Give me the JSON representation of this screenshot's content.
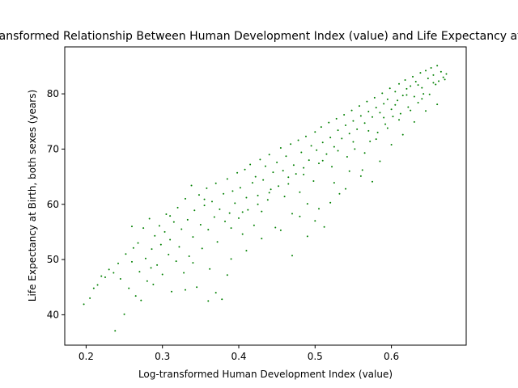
{
  "chart_data": {
    "type": "scatter",
    "title": "Log-transformed Relationship Between Human Development Index (value) and Life Expectancy at Birth",
    "xlabel": "Log-transformed Human Development Index (value)",
    "ylabel": "Life Expectancy at Birth, both sexes (years)",
    "xlim": [
      0.172,
      0.698
    ],
    "ylim": [
      34.5,
      88.5
    ],
    "xticks": [
      0.2,
      0.3,
      0.4,
      0.5,
      0.6
    ],
    "xtick_labels": [
      "0.2",
      "0.3",
      "0.4",
      "0.5",
      "0.6"
    ],
    "yticks": [
      40,
      50,
      60,
      70,
      80
    ],
    "ytick_labels": [
      "40",
      "50",
      "60",
      "70",
      "80"
    ],
    "grid": false,
    "legend": "none",
    "marker_color": "#008000",
    "points": [
      [
        0.197,
        41.9
      ],
      [
        0.205,
        43.0
      ],
      [
        0.21,
        44.8
      ],
      [
        0.215,
        45.4
      ],
      [
        0.22,
        47.0
      ],
      [
        0.225,
        46.8
      ],
      [
        0.23,
        48.2
      ],
      [
        0.236,
        47.6
      ],
      [
        0.238,
        37.1
      ],
      [
        0.242,
        49.3
      ],
      [
        0.245,
        46.5
      ],
      [
        0.25,
        40.1
      ],
      [
        0.252,
        51.0
      ],
      [
        0.256,
        44.8
      ],
      [
        0.26,
        49.6
      ],
      [
        0.262,
        52.1
      ],
      [
        0.265,
        43.4
      ],
      [
        0.268,
        53.0
      ],
      [
        0.27,
        47.8
      ],
      [
        0.272,
        42.6
      ],
      [
        0.275,
        55.7
      ],
      [
        0.278,
        50.2
      ],
      [
        0.28,
        46.1
      ],
      [
        0.283,
        57.4
      ],
      [
        0.286,
        51.9
      ],
      [
        0.288,
        45.5
      ],
      [
        0.29,
        54.3
      ],
      [
        0.293,
        49.0
      ],
      [
        0.296,
        56.1
      ],
      [
        0.298,
        52.7
      ],
      [
        0.3,
        47.3
      ],
      [
        0.303,
        55.0
      ],
      [
        0.305,
        58.2
      ],
      [
        0.308,
        50.9
      ],
      [
        0.31,
        53.6
      ],
      [
        0.312,
        44.2
      ],
      [
        0.315,
        56.8
      ],
      [
        0.318,
        49.7
      ],
      [
        0.32,
        59.4
      ],
      [
        0.322,
        52.3
      ],
      [
        0.325,
        55.5
      ],
      [
        0.328,
        47.6
      ],
      [
        0.33,
        61.0
      ],
      [
        0.333,
        57.2
      ],
      [
        0.335,
        50.6
      ],
      [
        0.338,
        63.4
      ],
      [
        0.34,
        54.1
      ],
      [
        0.342,
        58.9
      ],
      [
        0.345,
        45.0
      ],
      [
        0.348,
        61.7
      ],
      [
        0.35,
        56.3
      ],
      [
        0.352,
        52.0
      ],
      [
        0.355,
        59.8
      ],
      [
        0.358,
        62.9
      ],
      [
        0.36,
        55.4
      ],
      [
        0.362,
        48.3
      ],
      [
        0.365,
        60.5
      ],
      [
        0.368,
        57.7
      ],
      [
        0.37,
        63.8
      ],
      [
        0.372,
        53.2
      ],
      [
        0.375,
        59.1
      ],
      [
        0.378,
        42.8
      ],
      [
        0.38,
        61.9
      ],
      [
        0.382,
        56.9
      ],
      [
        0.385,
        64.6
      ],
      [
        0.388,
        58.4
      ],
      [
        0.39,
        50.1
      ],
      [
        0.392,
        62.4
      ],
      [
        0.395,
        60.2
      ],
      [
        0.398,
        65.7
      ],
      [
        0.4,
        57.5
      ],
      [
        0.402,
        63.0
      ],
      [
        0.405,
        54.6
      ],
      [
        0.408,
        66.3
      ],
      [
        0.41,
        61.2
      ],
      [
        0.412,
        59.0
      ],
      [
        0.415,
        67.2
      ],
      [
        0.418,
        63.9
      ],
      [
        0.42,
        56.2
      ],
      [
        0.422,
        65.0
      ],
      [
        0.425,
        61.6
      ],
      [
        0.428,
        68.1
      ],
      [
        0.43,
        58.7
      ],
      [
        0.432,
        64.4
      ],
      [
        0.435,
        66.9
      ],
      [
        0.438,
        60.8
      ],
      [
        0.44,
        69.0
      ],
      [
        0.442,
        62.7
      ],
      [
        0.445,
        65.8
      ],
      [
        0.448,
        55.8
      ],
      [
        0.45,
        67.6
      ],
      [
        0.452,
        63.3
      ],
      [
        0.455,
        70.2
      ],
      [
        0.458,
        66.1
      ],
      [
        0.46,
        61.4
      ],
      [
        0.462,
        68.7
      ],
      [
        0.465,
        64.9
      ],
      [
        0.468,
        70.9
      ],
      [
        0.47,
        58.3
      ],
      [
        0.472,
        67.1
      ],
      [
        0.475,
        65.5
      ],
      [
        0.478,
        71.6
      ],
      [
        0.48,
        62.2
      ],
      [
        0.482,
        69.4
      ],
      [
        0.485,
        66.6
      ],
      [
        0.488,
        72.3
      ],
      [
        0.49,
        60.1
      ],
      [
        0.492,
        68.0
      ],
      [
        0.495,
        70.6
      ],
      [
        0.498,
        64.2
      ],
      [
        0.5,
        73.1
      ],
      [
        0.502,
        69.8
      ],
      [
        0.505,
        67.4
      ],
      [
        0.508,
        74.0
      ],
      [
        0.51,
        71.2
      ],
      [
        0.512,
        55.9
      ],
      [
        0.515,
        69.1
      ],
      [
        0.518,
        74.8
      ],
      [
        0.52,
        72.1
      ],
      [
        0.522,
        66.8
      ],
      [
        0.525,
        70.4
      ],
      [
        0.528,
        75.5
      ],
      [
        0.53,
        73.4
      ],
      [
        0.532,
        61.9
      ],
      [
        0.535,
        71.9
      ],
      [
        0.538,
        76.2
      ],
      [
        0.54,
        74.3
      ],
      [
        0.542,
        68.6
      ],
      [
        0.545,
        72.8
      ],
      [
        0.548,
        77.0
      ],
      [
        0.55,
        75.1
      ],
      [
        0.552,
        70.0
      ],
      [
        0.555,
        73.6
      ],
      [
        0.558,
        77.8
      ],
      [
        0.56,
        76.0
      ],
      [
        0.562,
        66.2
      ],
      [
        0.565,
        74.7
      ],
      [
        0.568,
        78.6
      ],
      [
        0.57,
        76.8
      ],
      [
        0.572,
        71.4
      ],
      [
        0.575,
        75.8
      ],
      [
        0.578,
        79.3
      ],
      [
        0.58,
        77.5
      ],
      [
        0.582,
        73.0
      ],
      [
        0.585,
        76.6
      ],
      [
        0.588,
        80.1
      ],
      [
        0.59,
        78.2
      ],
      [
        0.592,
        74.5
      ],
      [
        0.595,
        79.0
      ],
      [
        0.598,
        81.0
      ],
      [
        0.6,
        77.2
      ],
      [
        0.602,
        75.9
      ],
      [
        0.605,
        80.4
      ],
      [
        0.608,
        78.8
      ],
      [
        0.61,
        81.8
      ],
      [
        0.612,
        76.4
      ],
      [
        0.615,
        79.7
      ],
      [
        0.618,
        82.5
      ],
      [
        0.62,
        80.9
      ],
      [
        0.622,
        77.6
      ],
      [
        0.625,
        81.4
      ],
      [
        0.628,
        83.1
      ],
      [
        0.63,
        79.5
      ],
      [
        0.632,
        82.2
      ],
      [
        0.635,
        78.4
      ],
      [
        0.638,
        83.8
      ],
      [
        0.64,
        81.1
      ],
      [
        0.642,
        80.0
      ],
      [
        0.645,
        84.2
      ],
      [
        0.648,
        82.8
      ],
      [
        0.65,
        79.9
      ],
      [
        0.652,
        84.7
      ],
      [
        0.655,
        83.4
      ],
      [
        0.658,
        81.7
      ],
      [
        0.66,
        85.1
      ],
      [
        0.662,
        82.3
      ],
      [
        0.665,
        84.0
      ],
      [
        0.668,
        83.0
      ],
      [
        0.67,
        82.6
      ],
      [
        0.672,
        83.6
      ],
      [
        0.33,
        44.5
      ],
      [
        0.36,
        42.5
      ],
      [
        0.37,
        44.0
      ],
      [
        0.385,
        47.2
      ],
      [
        0.41,
        51.6
      ],
      [
        0.43,
        53.8
      ],
      [
        0.455,
        55.3
      ],
      [
        0.47,
        50.7
      ],
      [
        0.49,
        54.2
      ],
      [
        0.5,
        57.0
      ],
      [
        0.52,
        60.3
      ],
      [
        0.54,
        62.8
      ],
      [
        0.56,
        65.1
      ],
      [
        0.575,
        64.1
      ],
      [
        0.585,
        67.8
      ],
      [
        0.6,
        70.8
      ],
      [
        0.615,
        72.6
      ],
      [
        0.63,
        74.9
      ],
      [
        0.645,
        76.9
      ],
      [
        0.66,
        78.1
      ],
      [
        0.48,
        57.8
      ],
      [
        0.505,
        59.2
      ],
      [
        0.525,
        63.9
      ],
      [
        0.545,
        66.0
      ],
      [
        0.565,
        69.3
      ],
      [
        0.58,
        71.8
      ],
      [
        0.595,
        73.8
      ],
      [
        0.61,
        75.3
      ],
      [
        0.625,
        77.0
      ],
      [
        0.64,
        79.1
      ],
      [
        0.26,
        56.0
      ],
      [
        0.285,
        48.5
      ],
      [
        0.31,
        57.9
      ],
      [
        0.34,
        49.4
      ],
      [
        0.355,
        60.9
      ],
      [
        0.39,
        55.7
      ],
      [
        0.405,
        58.6
      ],
      [
        0.425,
        60.0
      ],
      [
        0.44,
        62.1
      ],
      [
        0.465,
        63.7
      ],
      [
        0.485,
        65.4
      ],
      [
        0.51,
        67.9
      ],
      [
        0.53,
        69.7
      ],
      [
        0.55,
        71.3
      ],
      [
        0.57,
        73.3
      ],
      [
        0.59,
        75.7
      ],
      [
        0.605,
        78.0
      ],
      [
        0.62,
        79.8
      ],
      [
        0.635,
        81.6
      ],
      [
        0.655,
        82.0
      ]
    ]
  }
}
